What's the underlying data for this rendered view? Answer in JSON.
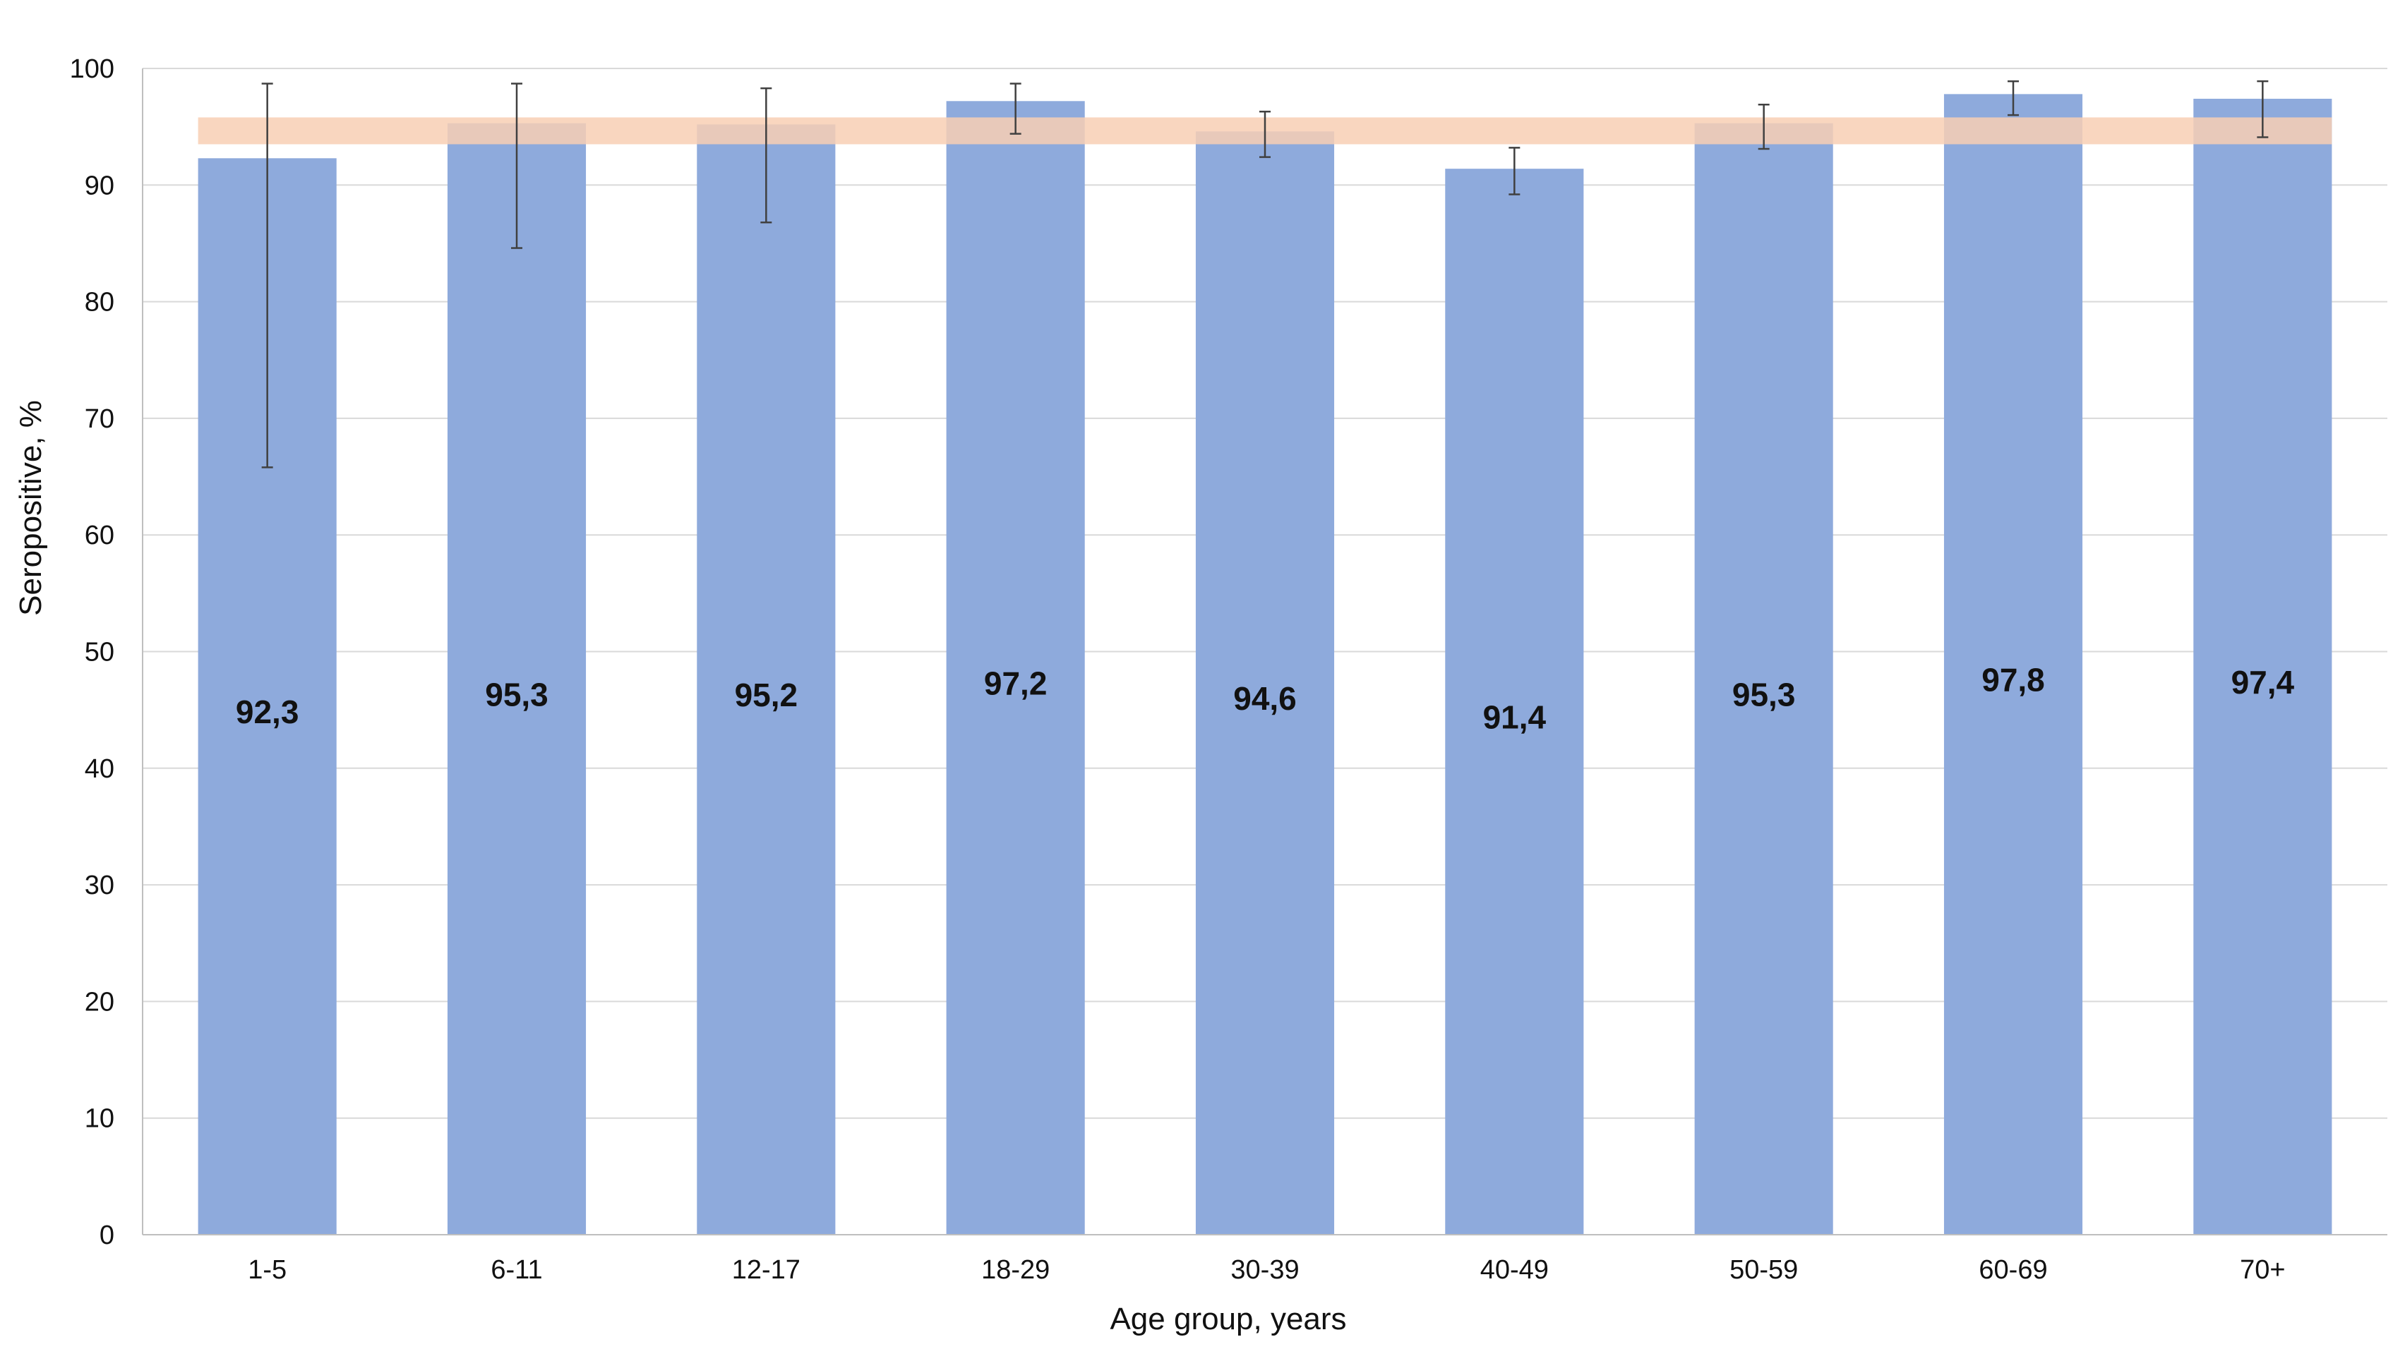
{
  "chart_data": {
    "type": "bar",
    "categories": [
      "1-5",
      "6-11",
      "12-17",
      "18-29",
      "30-39",
      "40-49",
      "50-59",
      "60-69",
      "70+"
    ],
    "values": [
      92.3,
      95.3,
      95.2,
      97.2,
      94.6,
      91.4,
      95.3,
      97.8,
      97.4
    ],
    "value_labels": [
      "92,3",
      "95,3",
      "95,2",
      "97,2",
      "94,6",
      "91,4",
      "95,3",
      "97,8",
      "97,4"
    ],
    "error_bars": [
      {
        "low": 65.8,
        "high": 98.7
      },
      {
        "low": 84.6,
        "high": 98.7
      },
      {
        "low": 86.8,
        "high": 98.3
      },
      {
        "low": 94.4,
        "high": 98.7
      },
      {
        "low": 92.4,
        "high": 96.3
      },
      {
        "low": 89.2,
        "high": 93.2
      },
      {
        "low": 93.1,
        "high": 96.9
      },
      {
        "low": 96.0,
        "high": 98.9
      },
      {
        "low": 94.1,
        "high": 98.9
      }
    ],
    "reference_band": {
      "low": 93.5,
      "high": 95.8,
      "color": "#F8CFB4"
    },
    "bar_color": "#8EAADC",
    "error_color": "#404040",
    "xlabel": "Age group, years",
    "ylabel": "Seropositive, %",
    "ylim": [
      0,
      100
    ],
    "yticks": [
      0,
      10,
      20,
      30,
      40,
      50,
      60,
      70,
      80,
      90,
      100
    ],
    "grid": true,
    "legend": "none"
  }
}
